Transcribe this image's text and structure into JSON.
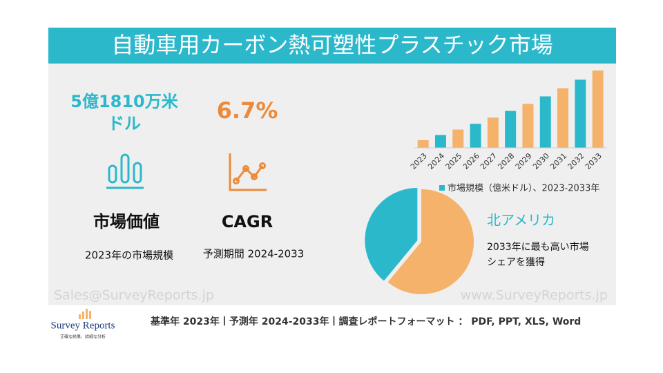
{
  "header": {
    "title": "自動車用カーボン熱可塑性プラスチック市場"
  },
  "stats": [
    {
      "value_lines": [
        "5億1810万米",
        "ドル"
      ],
      "label": "市場価値",
      "note": "2023年の市場規模"
    },
    {
      "value_lines": [
        "6.7%"
      ],
      "label": "CAGR",
      "note": "予測期間 2024-2033"
    }
  ],
  "chart_data": [
    {
      "type": "bar",
      "categories": [
        "2023",
        "2024",
        "2025",
        "2026",
        "2027",
        "2028",
        "2029",
        "2030",
        "2031",
        "2032",
        "2033"
      ],
      "series": [
        {
          "name": "市場規模（億米ドル）、2023-2033年",
          "color": "#2bb8cb",
          "alternate_color": "#f5b26b",
          "values": [
            5.18,
            5.53,
            5.9,
            6.29,
            6.71,
            7.16,
            7.64,
            8.15,
            8.7,
            9.28,
            9.9
          ]
        }
      ],
      "ylim": [
        4.66,
        10.0
      ]
    },
    {
      "type": "pie",
      "values": [
        61,
        39
      ],
      "colors": [
        "#f5b26b",
        "#2bb8cb"
      ]
    }
  ],
  "region": {
    "name": "北アメリカ",
    "lines": [
      "2033年に最も高い市場",
      "シェアを獲得"
    ]
  },
  "watermarks": [
    "Sales@SurveyReports.jp",
    "www.SurveyReports.jp"
  ],
  "footer": {
    "logo": "Survey Reports",
    "tagline": "正確な結果、詳細な分析",
    "text": "基準年 2023年丨予測年 2024-2033年丨調査レポートフォーマット ： PDF, PPT, XLS, Word"
  }
}
